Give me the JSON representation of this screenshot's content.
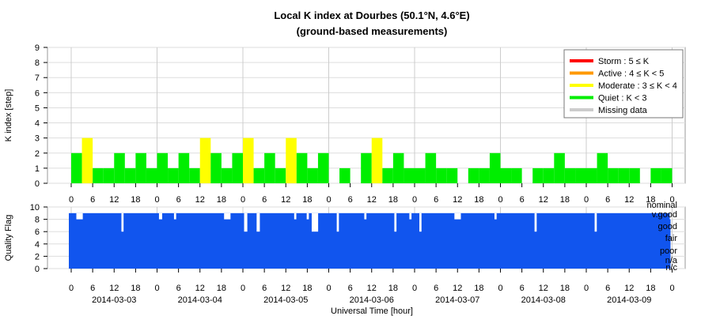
{
  "chart_data": [
    {
      "type": "bar",
      "title": "Local K index at Dourbes (50.1°N, 4.6°E)",
      "subtitle": "(ground-based measurements)",
      "ylabel": "K index [step]",
      "ylim": [
        0,
        9
      ],
      "yticks": [
        0,
        1,
        2,
        3,
        4,
        5,
        6,
        7,
        8,
        9
      ],
      "x_start": "2014-03-03 00:00",
      "x_span_hours": 168,
      "bar_width_hours": 3,
      "grid": true,
      "legend_position": "top-right",
      "legend": [
        {
          "label": "Storm : 5 ≤ K",
          "color": "#ff0000"
        },
        {
          "label": "Active : 4 ≤ K < 5",
          "color": "#ff9900"
        },
        {
          "label": "Moderate : 3 ≤ K < 4",
          "color": "#ffff00"
        },
        {
          "label": "Quiet : K < 3",
          "color": "#00ee00"
        },
        {
          "label": "Missing data",
          "color": "#cccccc"
        }
      ],
      "k_values": [
        2,
        3,
        1,
        1,
        2,
        1,
        2,
        1,
        2,
        1,
        2,
        1,
        3,
        2,
        1,
        2,
        3,
        1,
        2,
        1,
        3,
        2,
        1,
        2,
        0,
        1,
        0,
        2,
        3,
        1,
        2,
        1,
        1,
        2,
        1,
        1,
        0,
        1,
        1,
        2,
        1,
        1,
        0,
        1,
        1,
        2,
        1,
        1,
        1,
        2,
        1,
        1,
        1,
        0,
        1,
        1
      ]
    },
    {
      "type": "area",
      "ylabel": "Quality Flag",
      "xlabel": "Universal Time [hour]",
      "ylim": [
        0,
        10
      ],
      "yticks": [
        0,
        2,
        4,
        6,
        8,
        10
      ],
      "color": "#1155ee",
      "levels": [
        "nominal",
        "v.good",
        "good",
        "fair",
        "poor",
        "n/a",
        "n/c"
      ],
      "day_labels": [
        "2014-03-03",
        "2014-03-04",
        "2014-03-05",
        "2014-03-06",
        "2014-03-07",
        "2014-03-08",
        "2014-03-09"
      ],
      "hour_ticks": [
        "0",
        "6",
        "12",
        "18",
        "0",
        "6",
        "12",
        "18",
        "0",
        "6",
        "12",
        "18",
        "0",
        "6",
        "12",
        "18",
        "0",
        "6",
        "12",
        "18",
        "0",
        "6",
        "12",
        "18",
        "0",
        "6",
        "12",
        "18",
        "0"
      ],
      "dips": [
        {
          "hour": 3,
          "width": 3,
          "value": 8
        },
        {
          "hour": 21,
          "width": 1,
          "value": 6
        },
        {
          "hour": 36,
          "width": 1.5,
          "value": 8
        },
        {
          "hour": 42,
          "width": 1,
          "value": 8
        },
        {
          "hour": 62,
          "width": 3,
          "value": 8
        },
        {
          "hour": 70,
          "width": 1.5,
          "value": 6
        },
        {
          "hour": 75,
          "width": 1.5,
          "value": 6
        },
        {
          "hour": 90,
          "width": 1,
          "value": 8
        },
        {
          "hour": 95,
          "width": 1,
          "value": 8
        },
        {
          "hour": 97,
          "width": 3,
          "value": 6
        },
        {
          "hour": 107,
          "width": 1,
          "value": 6
        },
        {
          "hour": 118,
          "width": 1,
          "value": 8
        },
        {
          "hour": 130,
          "width": 1,
          "value": 6
        },
        {
          "hour": 136,
          "width": 1,
          "value": 8
        },
        {
          "hour": 140,
          "width": 1,
          "value": 6
        },
        {
          "hour": 154,
          "width": 3,
          "value": 8
        },
        {
          "hour": 170,
          "width": 1,
          "value": 8
        },
        {
          "hour": 186,
          "width": 1,
          "value": 6
        },
        {
          "hour": 210,
          "width": 1,
          "value": 6
        },
        {
          "hour": 240,
          "width": 1,
          "value": 8
        }
      ]
    }
  ]
}
